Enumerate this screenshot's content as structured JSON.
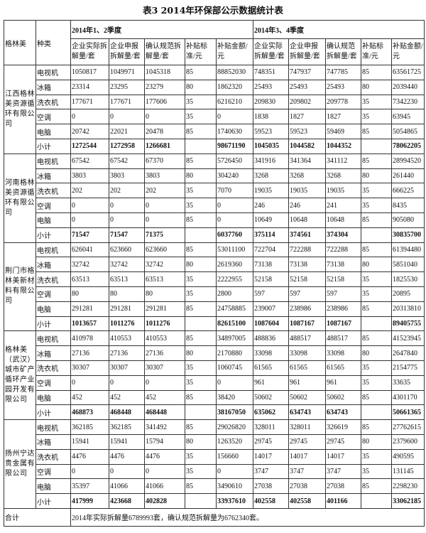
{
  "title": "表3   2014年环保部公示数据统计表",
  "header": {
    "company": "格林美",
    "type": "种类",
    "period1": "2014年1、2季度",
    "period2": "2014年3、4季度",
    "cols1": [
      "企业实际拆解量/套",
      "企业申报拆解量/套",
      "确认规范拆解量/套",
      "补贴标准/元",
      "补贴金额/元"
    ],
    "cols2": [
      "企业实际拆解量/套",
      "企业申报拆解量/套",
      "确认规范拆解量/套",
      "补贴标准/元",
      "补贴金额/元"
    ]
  },
  "groups": [
    {
      "company": "江西格林美资源循环有限公司",
      "rows": [
        [
          "电视机",
          "1050817",
          "1049971",
          "1045318",
          "85",
          "88852030",
          "748351",
          "747937",
          "747785",
          "85",
          "63561725"
        ],
        [
          "冰箱",
          "23314",
          "23295",
          "23279",
          "80",
          "1862320",
          "25493",
          "25493",
          "25493",
          "80",
          "2039440"
        ],
        [
          "洗衣机",
          "177671",
          "177671",
          "177606",
          "35",
          "6216210",
          "209830",
          "209802",
          "209778",
          "35",
          "7342230"
        ],
        [
          "空调",
          "0",
          "0",
          "0",
          "35",
          "0",
          "1838",
          "1827",
          "1827",
          "35",
          "63945"
        ],
        [
          "电脑",
          "20742",
          "22021",
          "20478",
          "85",
          "1740630",
          "59523",
          "59523",
          "59469",
          "85",
          "5054865"
        ],
        [
          "小计",
          "1272544",
          "1272958",
          "1266681",
          "",
          "98671190",
          "1045035",
          "1044582",
          "1044352",
          "",
          "78062205"
        ]
      ]
    },
    {
      "company": "河南格林美资源循环有限公司",
      "rows": [
        [
          "电视机",
          "67542",
          "67542",
          "67370",
          "85",
          "5726450",
          "341916",
          "341364",
          "341112",
          "85",
          "28994520"
        ],
        [
          "冰箱",
          "3803",
          "3803",
          "3803",
          "80",
          "304240",
          "3268",
          "3268",
          "3268",
          "80",
          "261440"
        ],
        [
          "洗衣机",
          "202",
          "202",
          "202",
          "35",
          "7070",
          "19035",
          "19035",
          "19035",
          "35",
          "666225"
        ],
        [
          "空调",
          "0",
          "0",
          "0",
          "35",
          "0",
          "246",
          "246",
          "241",
          "35",
          "8435"
        ],
        [
          "电脑",
          "0",
          "0",
          "0",
          "85",
          "0",
          "10649",
          "10648",
          "10648",
          "85",
          "905080"
        ],
        [
          "小计",
          "71547",
          "71547",
          "71375",
          "",
          "6037760",
          "375114",
          "374561",
          "374304",
          "",
          "30835700"
        ]
      ]
    },
    {
      "company": "荆门市格林美新材料有限公司",
      "rows": [
        [
          "电视机",
          "626041",
          "623660",
          "623660",
          "85",
          "53011100",
          "722704",
          "722288",
          "722288",
          "85",
          "61394480"
        ],
        [
          "冰箱",
          "32742",
          "32742",
          "32742",
          "80",
          "2619360",
          "73138",
          "73138",
          "73138",
          "80",
          "5851040"
        ],
        [
          "洗衣机",
          "63513",
          "63513",
          "63513",
          "35",
          "2222955",
          "52158",
          "52158",
          "52158",
          "35",
          "1825530"
        ],
        [
          "空调",
          "80",
          "80",
          "80",
          "35",
          "2800",
          "597",
          "597",
          "597",
          "35",
          "20895"
        ],
        [
          "电脑",
          "291281",
          "291281",
          "291281",
          "85",
          "24758885",
          "239007",
          "238986",
          "238986",
          "85",
          "20313810"
        ],
        [
          "小计",
          "1013657",
          "1011276",
          "1011276",
          "",
          "82615100",
          "1087604",
          "1087167",
          "1087167",
          "",
          "89405755"
        ]
      ]
    },
    {
      "company": "格林美（武汉）城市矿产循环产业园开发有限公司",
      "rows": [
        [
          "电视机",
          "410978",
          "410553",
          "410553",
          "85",
          "34897005",
          "488836",
          "488517",
          "488517",
          "85",
          "41523945"
        ],
        [
          "冰箱",
          "27136",
          "27136",
          "27136",
          "80",
          "2170880",
          "33098",
          "33098",
          "33098",
          "80",
          "2647840"
        ],
        [
          "洗衣机",
          "30307",
          "30307",
          "30307",
          "35",
          "1060745",
          "61565",
          "61565",
          "61565",
          "35",
          "2154775"
        ],
        [
          "空调",
          "0",
          "0",
          "0",
          "35",
          "0",
          "961",
          "961",
          "961",
          "35",
          "33635"
        ],
        [
          "电脑",
          "452",
          "452",
          "452",
          "85",
          "38420",
          "50602",
          "50602",
          "50602",
          "85",
          "4301170"
        ],
        [
          "小计",
          "468873",
          "468448",
          "468448",
          "",
          "38167050",
          "635062",
          "634743",
          "634743",
          "",
          "50661365"
        ]
      ]
    },
    {
      "company": "扬州宁达贵金属有限公司",
      "rows": [
        [
          "电视机",
          "362185",
          "362185",
          "341492",
          "85",
          "29026820",
          "328011",
          "328011",
          "326619",
          "85",
          "27762615"
        ],
        [
          "冰箱",
          "15941",
          "15941",
          "15794",
          "80",
          "1263520",
          "29745",
          "29745",
          "29745",
          "80",
          "2379600"
        ],
        [
          "洗衣机",
          "4476",
          "4476",
          "4476",
          "35",
          "156660",
          "14017",
          "14017",
          "14017",
          "35",
          "490595"
        ],
        [
          "空调",
          "0",
          "0",
          "0",
          "35",
          "0",
          "3747",
          "3747",
          "3747",
          "35",
          "131145"
        ],
        [
          "电脑",
          "35397",
          "41066",
          "41066",
          "85",
          "3490610",
          "27038",
          "27038",
          "27038",
          "85",
          "2298230"
        ],
        [
          "小计",
          "417999",
          "423668",
          "402828",
          "",
          "33937610",
          "402558",
          "402558",
          "401166",
          "",
          "33062185"
        ]
      ]
    }
  ],
  "total": {
    "label": "合计",
    "text": "2014年实际拆解量6789993套，确认规范拆解量为6762340套。"
  }
}
